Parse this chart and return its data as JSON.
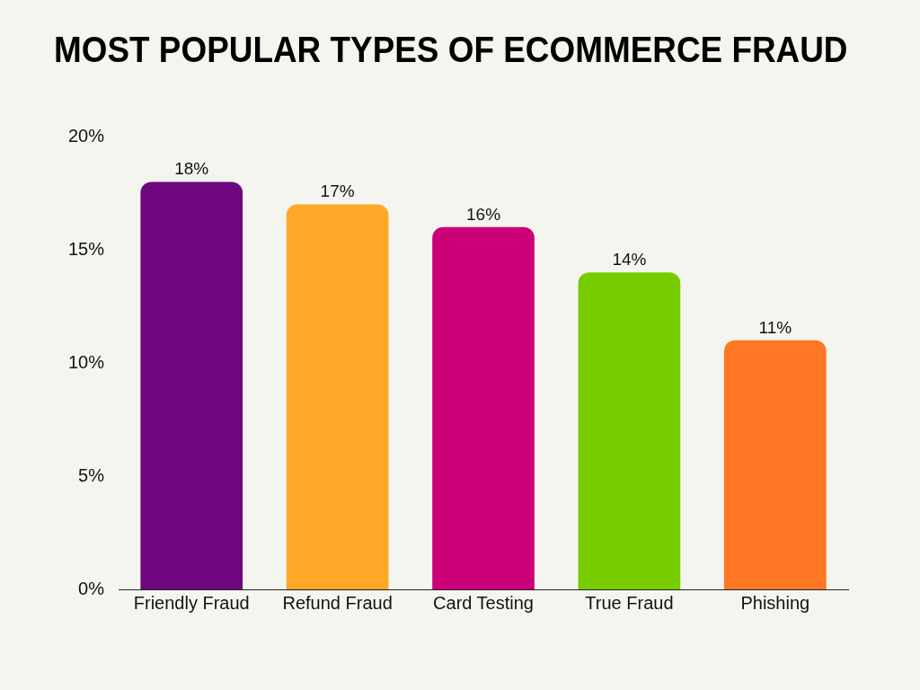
{
  "chart_data": {
    "type": "bar",
    "title": "MOST POPULAR TYPES OF ECOMMERCE FRAUD",
    "categories": [
      "Friendly Fraud",
      "Refund Fraud",
      "Card Testing",
      "True Fraud",
      "Phishing"
    ],
    "values": [
      18,
      17,
      16,
      14,
      11
    ],
    "colors": [
      "#6e077e",
      "#ffa726",
      "#cc0077",
      "#77cc00",
      "#ff7722"
    ],
    "value_labels": [
      "18%",
      "17%",
      "16%",
      "14%",
      "11%"
    ],
    "ylim": [
      0,
      20
    ],
    "yticks": [
      {
        "value": 0,
        "label": "0%"
      },
      {
        "value": 5,
        "label": "5%"
      },
      {
        "value": 10,
        "label": "10%"
      },
      {
        "value": 15,
        "label": "15%"
      },
      {
        "value": 20,
        "label": "20%"
      }
    ],
    "grid": false,
    "legend": false
  }
}
